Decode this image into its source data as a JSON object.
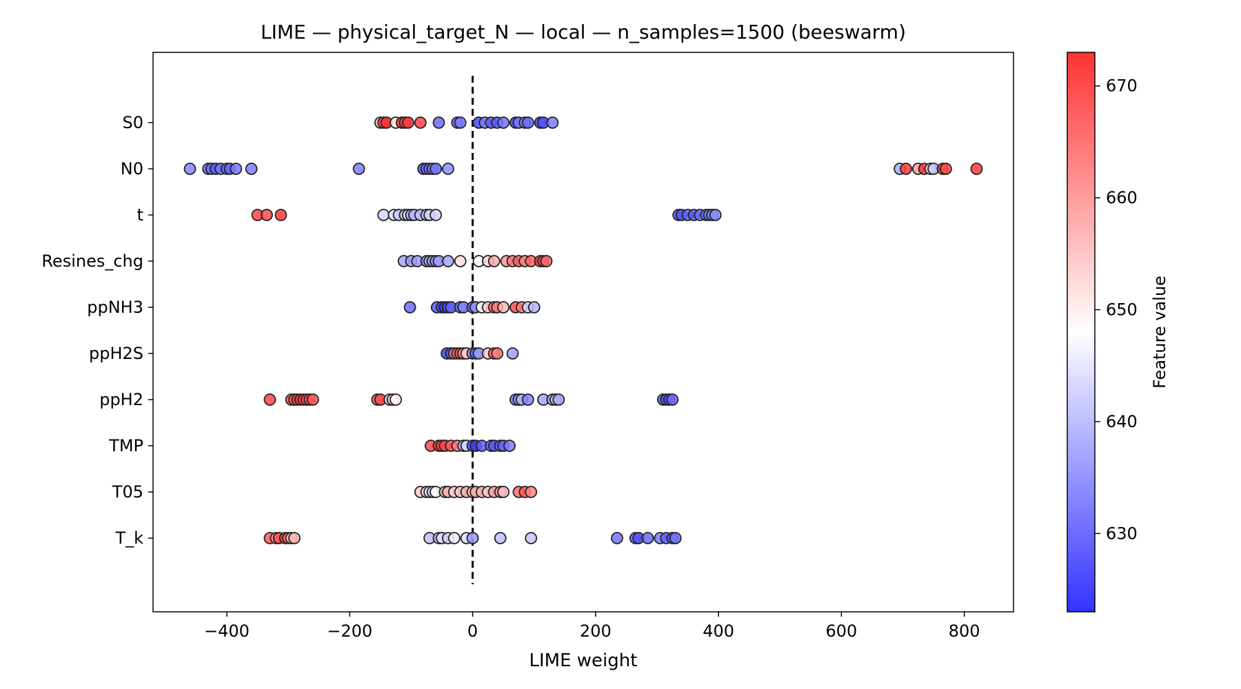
{
  "chart_data": {
    "type": "scatter",
    "title": "LIME — physical_target_N — local — n_samples=1500 (beeswarm)",
    "xlabel": "LIME weight",
    "ylabel": "",
    "xlim": [
      -520,
      880
    ],
    "xticks": [
      -400,
      -200,
      0,
      200,
      400,
      600,
      800
    ],
    "xtick_labels": [
      "−400",
      "−200",
      "0",
      "200",
      "400",
      "600",
      "800"
    ],
    "reference_line": {
      "x": 0,
      "style": "dashed"
    },
    "features": [
      "S0",
      "N0",
      "t",
      "Resines_chg",
      "ppNH3",
      "ppH2S",
      "ppH2",
      "TMP",
      "T05",
      "T_k"
    ],
    "colorbar": {
      "label": "Feature value",
      "range": [
        623,
        673
      ],
      "ticks": [
        630,
        640,
        650,
        660,
        670
      ],
      "low_color": "#3333ff",
      "mid_color": "#ffffff",
      "high_color": "#ff3333"
    },
    "series": [
      {
        "feature": "S0",
        "points": [
          [
            -150,
            658
          ],
          [
            -145,
            672
          ],
          [
            -140,
            673
          ],
          [
            -125,
            652
          ],
          [
            -115,
            673
          ],
          [
            -110,
            670
          ],
          [
            -105,
            672
          ],
          [
            -85,
            671
          ],
          [
            -55,
            630
          ],
          [
            -25,
            629
          ],
          [
            -20,
            632
          ],
          [
            10,
            626
          ],
          [
            20,
            632
          ],
          [
            30,
            628
          ],
          [
            40,
            628
          ],
          [
            50,
            631
          ],
          [
            70,
            625
          ],
          [
            75,
            632
          ],
          [
            85,
            632
          ],
          [
            90,
            630
          ],
          [
            110,
            625
          ],
          [
            115,
            627
          ],
          [
            130,
            632
          ]
        ]
      },
      {
        "feature": "N0",
        "points": [
          [
            -460,
            633
          ],
          [
            -430,
            631
          ],
          [
            -425,
            630
          ],
          [
            -418,
            628
          ],
          [
            -410,
            631
          ],
          [
            -400,
            630
          ],
          [
            -395,
            629
          ],
          [
            -385,
            632
          ],
          [
            -360,
            632
          ],
          [
            -185,
            632
          ],
          [
            -80,
            628
          ],
          [
            -75,
            631
          ],
          [
            -70,
            630
          ],
          [
            -65,
            632
          ],
          [
            -60,
            631
          ],
          [
            -40,
            634
          ],
          [
            695,
            638
          ],
          [
            705,
            672
          ],
          [
            725,
            660
          ],
          [
            735,
            672
          ],
          [
            745,
            645
          ],
          [
            750,
            641
          ],
          [
            765,
            672
          ],
          [
            770,
            670
          ],
          [
            820,
            672
          ]
        ]
      },
      {
        "feature": "t",
        "points": [
          [
            -350,
            671
          ],
          [
            -335,
            670
          ],
          [
            -312,
            672
          ],
          [
            -145,
            643
          ],
          [
            -128,
            644
          ],
          [
            -120,
            642
          ],
          [
            -110,
            641
          ],
          [
            -105,
            645
          ],
          [
            -100,
            638
          ],
          [
            -95,
            639
          ],
          [
            -85,
            640
          ],
          [
            -75,
            641
          ],
          [
            -70,
            642
          ],
          [
            -60,
            643
          ],
          [
            335,
            628
          ],
          [
            340,
            627
          ],
          [
            350,
            629
          ],
          [
            360,
            628
          ],
          [
            370,
            630
          ],
          [
            380,
            631
          ],
          [
            385,
            632
          ],
          [
            390,
            633
          ],
          [
            395,
            634
          ]
        ]
      },
      {
        "feature": "Resines_chg",
        "points": [
          [
            -112,
            637
          ],
          [
            -100,
            636
          ],
          [
            -90,
            636
          ],
          [
            -75,
            634
          ],
          [
            -70,
            638
          ],
          [
            -65,
            637
          ],
          [
            -60,
            635
          ],
          [
            -55,
            636
          ],
          [
            -40,
            637
          ],
          [
            -20,
            652
          ],
          [
            10,
            647
          ],
          [
            25,
            653
          ],
          [
            35,
            658
          ],
          [
            55,
            661
          ],
          [
            65,
            664
          ],
          [
            75,
            668
          ],
          [
            85,
            663
          ],
          [
            95,
            667
          ],
          [
            110,
            671
          ],
          [
            115,
            672
          ],
          [
            120,
            666
          ]
        ]
      },
      {
        "feature": "ppNH3",
        "points": [
          [
            -102,
            630
          ],
          [
            -58,
            628
          ],
          [
            -50,
            626
          ],
          [
            -45,
            624
          ],
          [
            -40,
            627
          ],
          [
            -35,
            629
          ],
          [
            -20,
            631
          ],
          [
            -15,
            633
          ],
          [
            0,
            629
          ],
          [
            5,
            635
          ],
          [
            15,
            648
          ],
          [
            25,
            654
          ],
          [
            35,
            666
          ],
          [
            40,
            664
          ],
          [
            50,
            657
          ],
          [
            70,
            670
          ],
          [
            80,
            664
          ],
          [
            90,
            643
          ],
          [
            100,
            639
          ]
        ]
      },
      {
        "feature": "ppH2S",
        "points": [
          [
            -42,
            625
          ],
          [
            -35,
            627
          ],
          [
            -30,
            662
          ],
          [
            -25,
            667
          ],
          [
            -20,
            670
          ],
          [
            -15,
            660
          ],
          [
            -10,
            654
          ],
          [
            0,
            633
          ],
          [
            5,
            629
          ],
          [
            10,
            636
          ],
          [
            25,
            655
          ],
          [
            35,
            667
          ],
          [
            40,
            664
          ],
          [
            65,
            636
          ]
        ]
      },
      {
        "feature": "ppH2",
        "points": [
          [
            -330,
            671
          ],
          [
            -295,
            669
          ],
          [
            -290,
            668
          ],
          [
            -285,
            670
          ],
          [
            -280,
            672
          ],
          [
            -275,
            671
          ],
          [
            -270,
            670
          ],
          [
            -265,
            669
          ],
          [
            -260,
            668
          ],
          [
            -155,
            668
          ],
          [
            -150,
            670
          ],
          [
            -135,
            652
          ],
          [
            -130,
            655
          ],
          [
            -125,
            648
          ],
          [
            70,
            632
          ],
          [
            75,
            635
          ],
          [
            80,
            639
          ],
          [
            90,
            633
          ],
          [
            115,
            637
          ],
          [
            130,
            639
          ],
          [
            135,
            640
          ],
          [
            140,
            638
          ],
          [
            310,
            629
          ],
          [
            315,
            627
          ],
          [
            320,
            626
          ],
          [
            325,
            630
          ]
        ]
      },
      {
        "feature": "TMP",
        "points": [
          [
            -68,
            670
          ],
          [
            -55,
            672
          ],
          [
            -50,
            669
          ],
          [
            -45,
            671
          ],
          [
            -35,
            668
          ],
          [
            -25,
            664
          ],
          [
            -15,
            640
          ],
          [
            -10,
            643
          ],
          [
            0,
            627
          ],
          [
            5,
            624
          ],
          [
            15,
            628
          ],
          [
            30,
            631
          ],
          [
            35,
            627
          ],
          [
            45,
            630
          ],
          [
            50,
            629
          ],
          [
            60,
            632
          ]
        ]
      },
      {
        "feature": "T05",
        "points": [
          [
            -85,
            655
          ],
          [
            -75,
            651
          ],
          [
            -70,
            649
          ],
          [
            -65,
            641
          ],
          [
            -60,
            648
          ],
          [
            -45,
            656
          ],
          [
            -40,
            658
          ],
          [
            -30,
            653
          ],
          [
            -20,
            655
          ],
          [
            -10,
            657
          ],
          [
            0,
            655
          ],
          [
            5,
            659
          ],
          [
            15,
            657
          ],
          [
            25,
            654
          ],
          [
            35,
            659
          ],
          [
            45,
            661
          ],
          [
            50,
            656
          ],
          [
            75,
            666
          ],
          [
            85,
            668
          ],
          [
            95,
            663
          ]
        ]
      },
      {
        "feature": "T_k",
        "points": [
          [
            -330,
            668
          ],
          [
            -320,
            661
          ],
          [
            -315,
            670
          ],
          [
            -305,
            672
          ],
          [
            -300,
            665
          ],
          [
            -295,
            655
          ],
          [
            -290,
            657
          ],
          [
            -70,
            640
          ],
          [
            -55,
            642
          ],
          [
            -50,
            644
          ],
          [
            -40,
            643
          ],
          [
            -30,
            646
          ],
          [
            -10,
            644
          ],
          [
            0,
            636
          ],
          [
            45,
            640
          ],
          [
            95,
            641
          ],
          [
            235,
            631
          ],
          [
            265,
            628
          ],
          [
            270,
            627
          ],
          [
            285,
            630
          ],
          [
            305,
            632
          ],
          [
            315,
            629
          ],
          [
            325,
            627
          ],
          [
            330,
            631
          ]
        ]
      }
    ]
  }
}
